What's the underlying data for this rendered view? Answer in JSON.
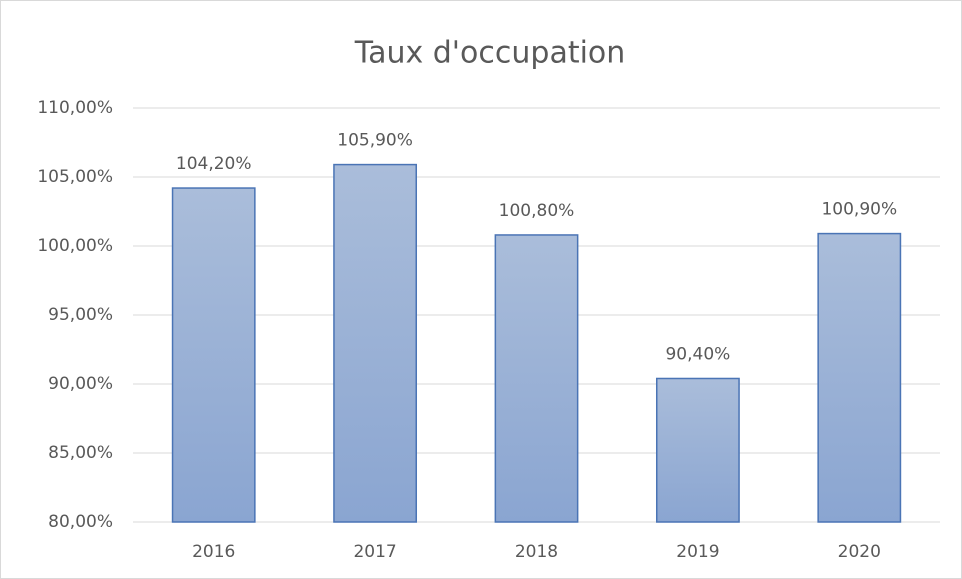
{
  "chart_data": {
    "type": "bar",
    "title": "Taux d'occupation",
    "categories": [
      "2016",
      "2017",
      "2018",
      "2019",
      "2020"
    ],
    "values": [
      104.2,
      105.9,
      100.8,
      90.4,
      100.9
    ],
    "value_labels": [
      "104,20%",
      "105,90%",
      "100,80%",
      "90,40%",
      "100,90%"
    ],
    "color": "#9bb1d6",
    "ylim": [
      80,
      110
    ],
    "yticks": [
      {
        "value": 80,
        "label": "80,00%"
      },
      {
        "value": 85,
        "label": "85,00%"
      },
      {
        "value": 90,
        "label": "90,00%"
      },
      {
        "value": 95,
        "label": "95,00%"
      },
      {
        "value": 100,
        "label": "100,00%"
      },
      {
        "value": 105,
        "label": "105,00%"
      },
      {
        "value": 110,
        "label": "110,00%"
      }
    ],
    "grid": true
  }
}
